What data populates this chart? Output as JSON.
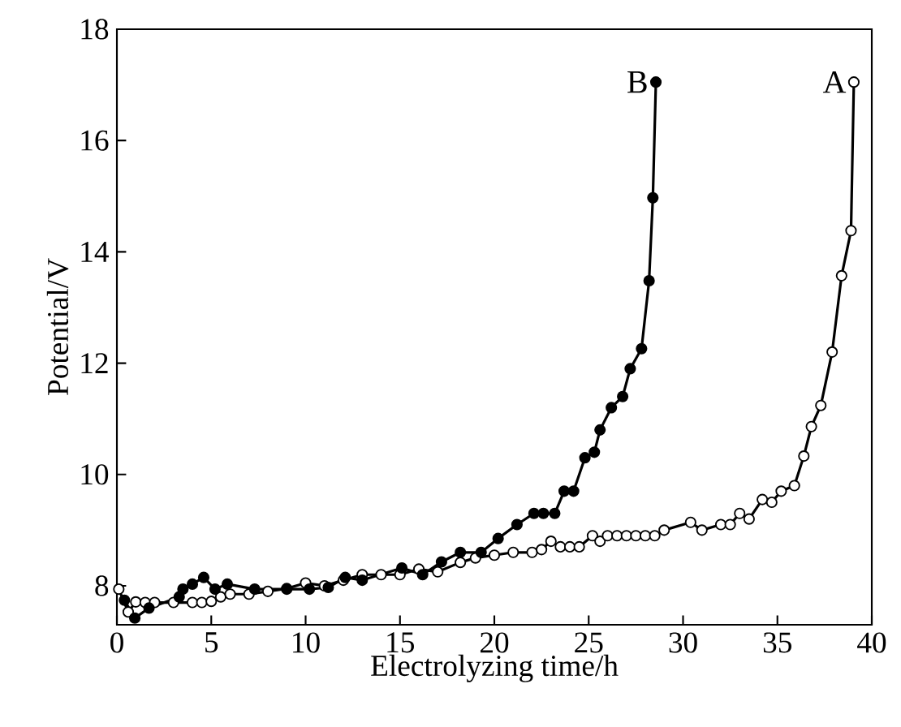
{
  "chart_data": {
    "type": "line",
    "xlabel": "Electrolyzing time/h",
    "ylabel": "Potential/V",
    "xlim": [
      0,
      40
    ],
    "ylim": [
      7.3,
      18
    ],
    "xticks": [
      0,
      5,
      10,
      15,
      20,
      25,
      30,
      35,
      40
    ],
    "yticks": [
      8,
      10,
      12,
      14,
      16,
      18
    ],
    "marker": "circle",
    "grid": false,
    "series": [
      {
        "name": "A",
        "color": "#000000",
        "x": [
          0.1,
          0.6,
          1.0,
          1.5,
          2.0,
          3.0,
          4.0,
          4.5,
          5.0,
          5.5,
          6.0,
          7.0,
          8.0,
          9.0,
          10.0,
          11.0,
          12.0,
          13.0,
          14.0,
          15.0,
          16.0,
          17.0,
          18.2,
          19.0,
          20.0,
          21.0,
          22.0,
          22.5,
          23.0,
          23.5,
          24.0,
          24.5,
          25.2,
          25.6,
          26.0,
          26.5,
          27.0,
          27.5,
          28.0,
          28.5,
          29.0,
          30.4,
          31.0,
          32.0,
          32.5,
          33.0,
          33.5,
          34.2,
          34.7,
          35.2,
          35.9,
          36.4,
          36.8,
          37.3,
          37.9,
          38.4,
          38.9,
          39.05
        ],
        "values": [
          7.94,
          7.53,
          7.71,
          7.7,
          7.7,
          7.7,
          7.7,
          7.7,
          7.72,
          7.8,
          7.85,
          7.85,
          7.9,
          7.95,
          8.05,
          8.0,
          8.1,
          8.2,
          8.2,
          8.2,
          8.3,
          8.25,
          8.42,
          8.5,
          8.55,
          8.6,
          8.6,
          8.65,
          8.8,
          8.7,
          8.7,
          8.7,
          8.9,
          8.8,
          8.9,
          8.9,
          8.9,
          8.9,
          8.9,
          8.9,
          9.0,
          9.14,
          9.0,
          9.1,
          9.1,
          9.3,
          9.2,
          9.55,
          9.5,
          9.7,
          9.8,
          10.33,
          10.86,
          11.24,
          12.2,
          13.57,
          14.38,
          17.05
        ]
      },
      {
        "name": "B",
        "color": "#000000",
        "x": [
          0.4,
          0.95,
          1.7,
          3.3,
          3.5,
          4.0,
          4.6,
          5.2,
          5.85,
          7.3,
          9.0,
          10.2,
          11.2,
          12.1,
          13.0,
          15.1,
          16.2,
          17.2,
          18.2,
          19.3,
          20.2,
          21.2,
          22.1,
          22.6,
          23.2,
          23.7,
          24.2,
          24.8,
          25.3,
          25.6,
          26.2,
          26.8,
          27.2,
          27.8,
          28.2,
          28.4,
          28.56
        ],
        "values": [
          7.74,
          7.42,
          7.6,
          7.8,
          7.94,
          8.03,
          8.15,
          7.94,
          8.03,
          7.94,
          7.94,
          7.94,
          7.97,
          8.15,
          8.1,
          8.32,
          8.2,
          8.43,
          8.6,
          8.6,
          8.85,
          9.1,
          9.3,
          9.3,
          9.3,
          9.7,
          9.7,
          10.3,
          10.4,
          10.8,
          11.2,
          11.4,
          11.9,
          12.26,
          13.48,
          14.97,
          17.05
        ]
      }
    ]
  }
}
